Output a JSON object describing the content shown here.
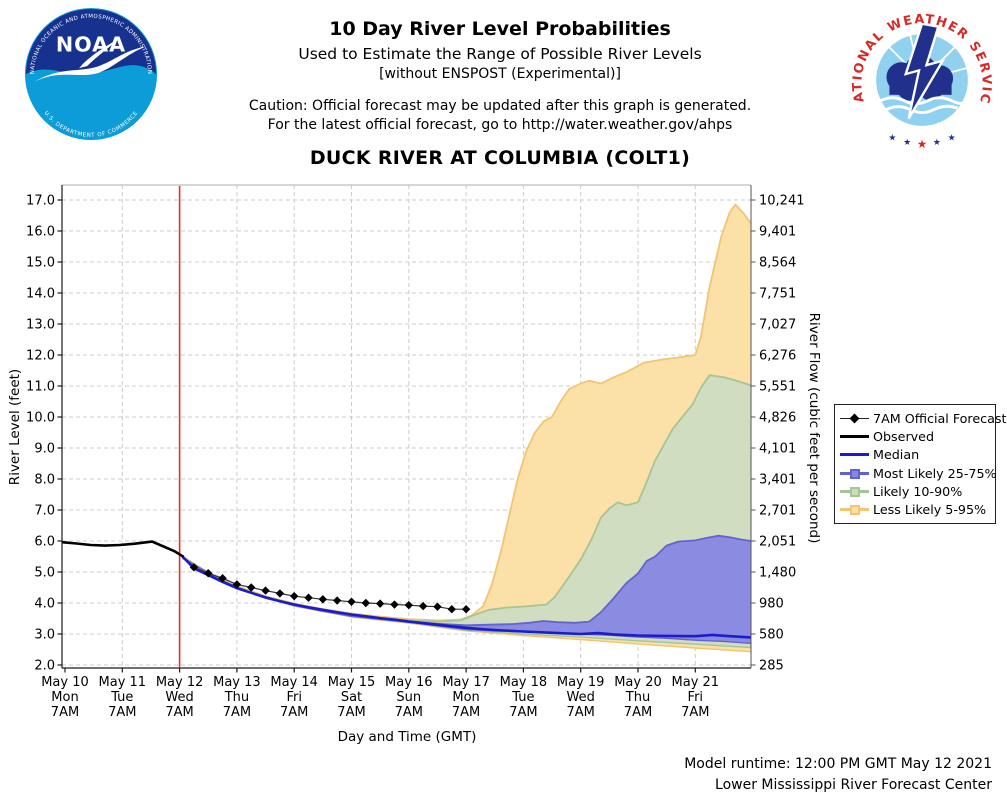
{
  "header": {
    "title": "10 Day River Level Probabilities",
    "subtitle": "Used to Estimate the Range of Possible River Levels",
    "experimental_note": "[without ENSPOST (Experimental)]",
    "caution_line1": "Caution: Official forecast may be updated after this graph is generated.",
    "caution_line2": "For the latest official forecast, go to http://water.weather.gov/ahps",
    "station_title": "DUCK RIVER AT COLUMBIA (COLT1)"
  },
  "logos": {
    "noaa": {
      "name": "NOAA",
      "arc_top": "NATIONAL OCEANIC AND ATMOSPHERIC ADMINISTRATION",
      "arc_bottom": "U.S. DEPARTMENT OF COMMERCE"
    },
    "nws": {
      "arc": "NATIONAL WEATHER SERVICE"
    }
  },
  "footer": {
    "model_runtime": "Model runtime: 12:00 PM GMT May 12 2021",
    "center_name": "Lower Mississippi River Forecast Center"
  },
  "colors": {
    "median": "#1c1ccd",
    "observed": "#000000",
    "forecast_line": "#333333",
    "time_line": "#e62e2e",
    "band_25_75_fill": "#8787e3",
    "band_25_75_edge": "#6363cf",
    "band_10_90_fill": "#cddcc1",
    "band_10_90_edge": "#a6c496",
    "band_5_95_fill": "#fbdfa3",
    "band_5_95_edge": "#f2c474",
    "grid": "#cccccc",
    "axis": "#1a1a1a",
    "top_border": "#b7c2b1",
    "nws_red": "#d52b28",
    "nws_sky": "#8fd1ef",
    "logo_navy": "#20308c",
    "noaa_navy": "#16318e",
    "noaa_light_blue": "#0c9cd8"
  },
  "chart_data": {
    "type": "area",
    "title": "DUCK RIVER AT COLUMBIA (COLT1)",
    "xlabel": "Day and Time (GMT)",
    "ylabel_left": "River Level (feet)",
    "ylabel_right": "River Flow (cubic feet per second)",
    "x_origin": "May 10 7AM GMT, t measured in days",
    "x_range_days": [
      0,
      11.97
    ],
    "ylim_feet": [
      2.0,
      17.0
    ],
    "grid": true,
    "legend_position": "right",
    "current_time_line_t": 2.0,
    "x_ticks": [
      {
        "t": 0,
        "date": "May 10",
        "day": "Mon",
        "time": "7AM"
      },
      {
        "t": 1,
        "date": "May 11",
        "day": "Tue",
        "time": "7AM"
      },
      {
        "t": 2,
        "date": "May 12",
        "day": "Wed",
        "time": "7AM"
      },
      {
        "t": 3,
        "date": "May 13",
        "day": "Thu",
        "time": "7AM"
      },
      {
        "t": 4,
        "date": "May 14",
        "day": "Fri",
        "time": "7AM"
      },
      {
        "t": 5,
        "date": "May 15",
        "day": "Sat",
        "time": "7AM"
      },
      {
        "t": 6,
        "date": "May 16",
        "day": "Sun",
        "time": "7AM"
      },
      {
        "t": 7,
        "date": "May 17",
        "day": "Mon",
        "time": "7AM"
      },
      {
        "t": 8,
        "date": "May 18",
        "day": "Tue",
        "time": "7AM"
      },
      {
        "t": 9,
        "date": "May 19",
        "day": "Wed",
        "time": "7AM"
      },
      {
        "t": 10,
        "date": "May 20",
        "day": "Thu",
        "time": "7AM"
      },
      {
        "t": 11,
        "date": "May 21",
        "day": "Fri",
        "time": "7AM"
      }
    ],
    "y_ticks_left": [
      "2.0",
      "3.0",
      "4.0",
      "5.0",
      "6.0",
      "7.0",
      "8.0",
      "9.0",
      "10.0",
      "11.0",
      "12.0",
      "13.0",
      "14.0",
      "15.0",
      "16.0",
      "17.0"
    ],
    "y_ticks_right": [
      "285",
      "580",
      "980",
      "1,480",
      "2,051",
      "2,701",
      "3,401",
      "4,101",
      "4,826",
      "5,551",
      "6,276",
      "7,027",
      "7,751",
      "8,564",
      "9,401",
      "10,241"
    ],
    "legend": [
      {
        "key": "forecast_7am",
        "label": "7AM Official Forecast"
      },
      {
        "key": "observed",
        "label": "Observed"
      },
      {
        "key": "median",
        "label": "Median"
      },
      {
        "key": "band_25_75",
        "label": "Most Likely 25-75%"
      },
      {
        "key": "band_10_90",
        "label": "Likely 10-90%"
      },
      {
        "key": "band_5_95",
        "label": "Less Likely 5-95%"
      }
    ],
    "series": {
      "observed": {
        "name": "Observed",
        "units": "feet",
        "points": [
          [
            -0.05,
            5.96
          ],
          [
            0.2,
            5.92
          ],
          [
            0.45,
            5.87
          ],
          [
            0.7,
            5.85
          ],
          [
            0.95,
            5.87
          ],
          [
            1.2,
            5.91
          ],
          [
            1.52,
            5.98
          ],
          [
            1.7,
            5.84
          ],
          [
            1.9,
            5.68
          ],
          [
            2.07,
            5.49
          ]
        ]
      },
      "forecast_7am": {
        "name": "7AM Official Forecast",
        "units": "feet",
        "points": [
          [
            2.25,
            5.15
          ],
          [
            2.5,
            4.96
          ],
          [
            2.75,
            4.8
          ],
          [
            3.0,
            4.6
          ],
          [
            3.25,
            4.5
          ],
          [
            3.5,
            4.4
          ],
          [
            3.75,
            4.31
          ],
          [
            4.0,
            4.22
          ],
          [
            4.25,
            4.17
          ],
          [
            4.5,
            4.12
          ],
          [
            4.75,
            4.08
          ],
          [
            5.0,
            4.04
          ],
          [
            5.25,
            4.0
          ],
          [
            5.5,
            3.98
          ],
          [
            5.75,
            3.95
          ],
          [
            6.0,
            3.93
          ],
          [
            6.25,
            3.9
          ],
          [
            6.5,
            3.88
          ],
          [
            6.75,
            3.8
          ],
          [
            7.0,
            3.8
          ]
        ]
      },
      "median": {
        "name": "Median",
        "units": "feet",
        "points": [
          [
            2.05,
            5.5
          ],
          [
            2.25,
            5.12
          ],
          [
            2.5,
            4.9
          ],
          [
            2.75,
            4.68
          ],
          [
            3,
            4.48
          ],
          [
            3.25,
            4.33
          ],
          [
            3.5,
            4.18
          ],
          [
            3.75,
            4.06
          ],
          [
            4,
            3.95
          ],
          [
            4.25,
            3.86
          ],
          [
            4.5,
            3.78
          ],
          [
            4.75,
            3.7
          ],
          [
            5,
            3.63
          ],
          [
            5.25,
            3.57
          ],
          [
            5.5,
            3.51
          ],
          [
            5.75,
            3.46
          ],
          [
            6,
            3.4
          ],
          [
            6.25,
            3.35
          ],
          [
            6.5,
            3.3
          ],
          [
            6.75,
            3.25
          ],
          [
            7,
            3.2
          ],
          [
            7.25,
            3.16
          ],
          [
            7.5,
            3.13
          ],
          [
            8,
            3.08
          ],
          [
            8.5,
            3.04
          ],
          [
            9,
            3.0
          ],
          [
            9.3,
            3.03
          ],
          [
            9.6,
            2.98
          ],
          [
            10,
            2.95
          ],
          [
            10.5,
            2.94
          ],
          [
            11,
            2.93
          ],
          [
            11.3,
            2.97
          ],
          [
            11.6,
            2.93
          ],
          [
            11.97,
            2.89
          ]
        ]
      },
      "band_25_75": {
        "name": "Most Likely 25-75%",
        "units": "feet",
        "top": [
          [
            2.05,
            5.47
          ],
          [
            2.5,
            4.93
          ],
          [
            3,
            4.5
          ],
          [
            3.5,
            4.16
          ],
          [
            4,
            3.93
          ],
          [
            4.5,
            3.74
          ],
          [
            5,
            3.6
          ],
          [
            5.5,
            3.5
          ],
          [
            6,
            3.4
          ],
          [
            6.5,
            3.33
          ],
          [
            7,
            3.28
          ],
          [
            7.4,
            3.3
          ],
          [
            7.8,
            3.32
          ],
          [
            8.1,
            3.36
          ],
          [
            8.35,
            3.42
          ],
          [
            8.6,
            3.38
          ],
          [
            8.9,
            3.36
          ],
          [
            9.15,
            3.4
          ],
          [
            9.35,
            3.7
          ],
          [
            9.55,
            4.1
          ],
          [
            9.8,
            4.65
          ],
          [
            10.0,
            4.95
          ],
          [
            10.15,
            5.35
          ],
          [
            10.3,
            5.5
          ],
          [
            10.5,
            5.85
          ],
          [
            10.7,
            5.98
          ],
          [
            11.0,
            6.02
          ],
          [
            11.2,
            6.1
          ],
          [
            11.4,
            6.17
          ],
          [
            11.6,
            6.12
          ],
          [
            11.8,
            6.05
          ],
          [
            11.97,
            6.0
          ]
        ],
        "bottom": [
          [
            2.05,
            5.44
          ],
          [
            3,
            4.47
          ],
          [
            4,
            3.92
          ],
          [
            5,
            3.57
          ],
          [
            6,
            3.38
          ],
          [
            7,
            3.15
          ],
          [
            7.5,
            3.1
          ],
          [
            8,
            3.07
          ],
          [
            9,
            3.0
          ],
          [
            9.5,
            2.96
          ],
          [
            10,
            2.9
          ],
          [
            10.5,
            2.86
          ],
          [
            11,
            2.8
          ],
          [
            11.5,
            2.76
          ],
          [
            11.97,
            2.7
          ]
        ]
      },
      "band_10_90": {
        "name": "Likely 10-90%",
        "units": "feet",
        "top": [
          [
            2.05,
            5.48
          ],
          [
            2.5,
            4.95
          ],
          [
            3,
            4.52
          ],
          [
            3.5,
            4.18
          ],
          [
            4,
            3.95
          ],
          [
            4.5,
            3.76
          ],
          [
            5,
            3.62
          ],
          [
            5.5,
            3.52
          ],
          [
            6,
            3.44
          ],
          [
            6.5,
            3.4
          ],
          [
            6.9,
            3.44
          ],
          [
            7.15,
            3.62
          ],
          [
            7.4,
            3.78
          ],
          [
            7.7,
            3.85
          ],
          [
            8.1,
            3.9
          ],
          [
            8.4,
            3.95
          ],
          [
            8.55,
            4.2
          ],
          [
            8.8,
            4.85
          ],
          [
            9.0,
            5.4
          ],
          [
            9.2,
            6.1
          ],
          [
            9.35,
            6.75
          ],
          [
            9.5,
            7.05
          ],
          [
            9.65,
            7.25
          ],
          [
            9.8,
            7.15
          ],
          [
            10.0,
            7.25
          ],
          [
            10.15,
            7.9
          ],
          [
            10.3,
            8.6
          ],
          [
            10.45,
            9.1
          ],
          [
            10.6,
            9.6
          ],
          [
            10.75,
            9.95
          ],
          [
            10.95,
            10.4
          ],
          [
            11.1,
            10.95
          ],
          [
            11.25,
            11.35
          ],
          [
            11.5,
            11.28
          ],
          [
            11.75,
            11.15
          ],
          [
            11.97,
            11.02
          ]
        ],
        "bottom": [
          [
            2.05,
            5.45
          ],
          [
            3,
            4.46
          ],
          [
            4,
            3.91
          ],
          [
            5,
            3.56
          ],
          [
            6,
            3.37
          ],
          [
            7,
            3.12
          ],
          [
            8,
            3.0
          ],
          [
            9,
            2.9
          ],
          [
            10,
            2.78
          ],
          [
            11,
            2.67
          ],
          [
            11.97,
            2.56
          ]
        ]
      },
      "band_5_95": {
        "name": "Less Likely 5-95%",
        "units": "feet",
        "top": [
          [
            2.05,
            5.5
          ],
          [
            2.5,
            4.98
          ],
          [
            3,
            4.55
          ],
          [
            3.5,
            4.22
          ],
          [
            4,
            3.98
          ],
          [
            4.5,
            3.8
          ],
          [
            5,
            3.66
          ],
          [
            5.5,
            3.56
          ],
          [
            6,
            3.48
          ],
          [
            6.5,
            3.44
          ],
          [
            6.9,
            3.46
          ],
          [
            7.1,
            3.6
          ],
          [
            7.3,
            3.9
          ],
          [
            7.45,
            4.6
          ],
          [
            7.6,
            5.6
          ],
          [
            7.75,
            6.8
          ],
          [
            7.9,
            8.0
          ],
          [
            8.05,
            8.9
          ],
          [
            8.2,
            9.5
          ],
          [
            8.35,
            9.85
          ],
          [
            8.5,
            10.0
          ],
          [
            8.65,
            10.5
          ],
          [
            8.8,
            10.9
          ],
          [
            9.0,
            11.08
          ],
          [
            9.15,
            11.17
          ],
          [
            9.35,
            11.08
          ],
          [
            9.6,
            11.3
          ],
          [
            9.8,
            11.45
          ],
          [
            10.1,
            11.75
          ],
          [
            10.4,
            11.85
          ],
          [
            10.7,
            11.92
          ],
          [
            11.0,
            12.0
          ],
          [
            11.1,
            12.6
          ],
          [
            11.25,
            14.2
          ],
          [
            11.45,
            15.8
          ],
          [
            11.6,
            16.6
          ],
          [
            11.7,
            16.85
          ],
          [
            11.85,
            16.55
          ],
          [
            11.97,
            16.25
          ]
        ],
        "bottom": [
          [
            2.05,
            5.45
          ],
          [
            3,
            4.45
          ],
          [
            4,
            3.9
          ],
          [
            5,
            3.55
          ],
          [
            6,
            3.35
          ],
          [
            7,
            3.1
          ],
          [
            8,
            2.95
          ],
          [
            9,
            2.82
          ],
          [
            10,
            2.68
          ],
          [
            11,
            2.55
          ],
          [
            11.97,
            2.43
          ]
        ]
      }
    }
  }
}
